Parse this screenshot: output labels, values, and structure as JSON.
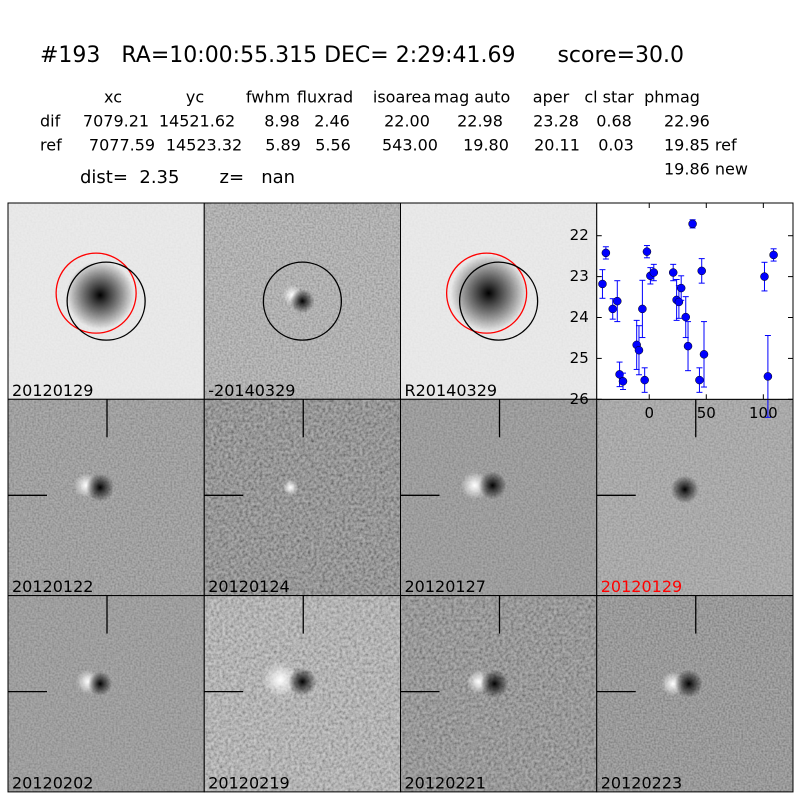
{
  "header": {
    "title": "#193   RA=10:00:55.315 DEC= 2:29:41.69      score=30.0",
    "columns": [
      "xc",
      "yc",
      "fwhm",
      "fluxrad",
      "isoarea",
      "mag auto",
      "aper",
      "cl star",
      "phmag"
    ],
    "rows": [
      [
        "dif",
        "7079.21",
        "14521.62",
        "8.98",
        "2.46",
        "22.00",
        "22.98",
        "23.28",
        "0.68",
        "22.96"
      ],
      [
        "ref",
        "7077.59",
        "14523.32",
        "5.89",
        "5.56",
        "543.00",
        "19.80",
        "20.11",
        "0.03",
        "19.85 ref"
      ]
    ],
    "extra": "19.86 new",
    "dist_line": "dist=  2.35       z=   nan"
  },
  "panels": [
    {
      "label": "20120129"
    },
    {
      "label": "-20140329"
    },
    {
      "label": "R20140329"
    },
    {
      "label": "20120122"
    },
    {
      "label": "20120124"
    },
    {
      "label": "20120127"
    },
    {
      "label": "20120129",
      "color": "#ff0000"
    },
    {
      "label": "20120202"
    },
    {
      "label": "20120219"
    },
    {
      "label": "20120221"
    },
    {
      "label": "20120223"
    }
  ],
  "chart_data": {
    "type": "errorbar",
    "xlim": [
      -46,
      126
    ],
    "ylim": [
      26,
      21.2
    ],
    "xticks": [
      0,
      50,
      100
    ],
    "yticks": [
      22,
      23,
      24,
      25,
      26
    ],
    "series": [
      {
        "color": "#0000ff",
        "x": [
          -41,
          -38,
          -32,
          -28,
          -26,
          -23,
          -11,
          -9,
          -6,
          -4,
          -2,
          1,
          4,
          21,
          24,
          26,
          28,
          32,
          34,
          38,
          44,
          46,
          48,
          101,
          104,
          109
        ],
        "values": [
          23.18,
          22.42,
          23.79,
          23.6,
          25.39,
          25.56,
          24.67,
          24.8,
          23.79,
          25.53,
          22.39,
          22.98,
          22.9,
          22.9,
          23.57,
          23.62,
          23.28,
          23.99,
          24.7,
          21.71,
          25.53,
          22.86,
          24.9,
          23.0,
          25.44,
          22.47
        ],
        "errors": [
          0.35,
          0.15,
          0.25,
          0.5,
          0.3,
          0.2,
          0.6,
          0.6,
          0.7,
          0.3,
          0.15,
          0.2,
          0.2,
          0.2,
          0.5,
          0.4,
          0.3,
          0.5,
          0.6,
          0.1,
          0.3,
          0.3,
          0.8,
          0.35,
          1.0,
          0.15
        ]
      }
    ]
  }
}
